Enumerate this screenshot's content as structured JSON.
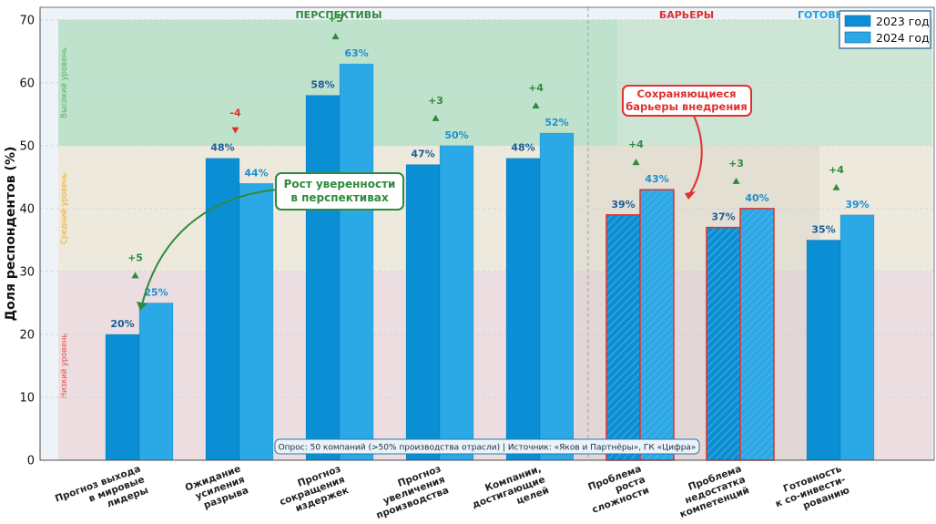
{
  "chart_data": {
    "type": "bar",
    "ylabel": "Доля респондентов (%)",
    "ylim": [
      0,
      72
    ],
    "yticks": [
      0,
      10,
      20,
      30,
      40,
      50,
      60,
      70
    ],
    "grid": true,
    "categories": [
      "Прогноз выхода\nв мировые\nлидеры",
      "Ожидание\nусиления\nразрыва",
      "Прогноз\nсокращения\nиздержек",
      "Прогноз\nувеличения\nпроизводства",
      "Компании,\nдостигающие\nцелей",
      "Проблема\nроста\nсложности",
      "Проблема\nнедостатка\nкомпетенций",
      "Готовность\nк со-инвести-\nрованию"
    ],
    "series": [
      {
        "name": "2023 год",
        "values": [
          20,
          48,
          58,
          47,
          48,
          39,
          37,
          35
        ],
        "color": "#0a8fd4"
      },
      {
        "name": "2024 год",
        "values": [
          25,
          44,
          63,
          50,
          52,
          43,
          40,
          39
        ],
        "color": "#2aa9e6"
      }
    ],
    "value_labels": {
      "2023": [
        "20%",
        "48%",
        "58%",
        "47%",
        "48%",
        "39%",
        "37%",
        "35%"
      ],
      "2024": [
        "25%",
        "44%",
        "63%",
        "50%",
        "52%",
        "43%",
        "40%",
        "39%"
      ]
    },
    "deltas": [
      "+5",
      "-4",
      "+5",
      "+3",
      "+4",
      "+4",
      "+3",
      "+4"
    ],
    "barrier_categories": [
      5,
      6
    ],
    "zones": [
      {
        "label": "Высокий уровень",
        "from": 50,
        "to": 70,
        "color": "#4caf50"
      },
      {
        "label": "Средний уровень",
        "from": 30,
        "to": 50,
        "color": "#f0a830"
      },
      {
        "label": "Низкий уровень",
        "from": 0,
        "to": 30,
        "color": "#e05050"
      }
    ],
    "section_titles": {
      "perspectives": "ПЕРСПЕКТИВЫ",
      "barriers": "БАРЬЕРЫ",
      "readiness": "ГОТОВН..."
    },
    "annotations": {
      "confidence": "Рост уверенности\nв перспективах",
      "barriers": "Сохраняющиеся\nбарьеры внедрения"
    },
    "source_note": "Опрос: 50 компаний (>50% производства отрасли) | Источник: «Яков и Партнёры», ГК «Цифра»",
    "legend": {
      "position": "top-right"
    }
  },
  "colors": {
    "series2023": "#0a8fd4",
    "series2024": "#2aa9e6",
    "positive": "#2e8b3c",
    "negative": "#e03030",
    "barrier_border": "#e03030",
    "readiness_title": "#1ea0e0"
  }
}
